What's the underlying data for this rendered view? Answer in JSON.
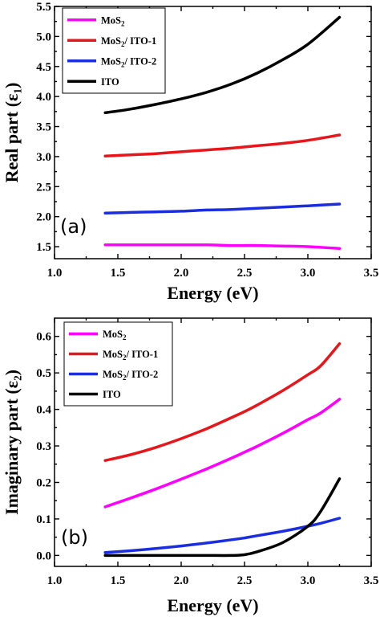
{
  "chart_data": [
    {
      "type": "line",
      "panel_label": "(a)",
      "xlabel": "Energy (eV)",
      "ylabel": "Real  part (ε₁)",
      "xlim": [
        1.0,
        3.5
      ],
      "ylim": [
        1.3,
        5.5
      ],
      "xticks": [
        "1.0",
        "1.5",
        "2.0",
        "2.5",
        "3.0",
        "3.5"
      ],
      "yticks": [
        "1.5",
        "2.0",
        "2.5",
        "3.0",
        "3.5",
        "4.0",
        "4.5",
        "5.0",
        "5.5"
      ],
      "legend_placement": "top-left",
      "x": [
        1.4,
        1.6,
        1.8,
        2.0,
        2.2,
        2.4,
        2.6,
        2.8,
        3.0,
        3.25
      ],
      "series": [
        {
          "name": "MoS2",
          "color": "#ff00ff",
          "values": [
            1.53,
            1.53,
            1.53,
            1.53,
            1.53,
            1.52,
            1.52,
            1.51,
            1.5,
            1.47
          ]
        },
        {
          "name": "MoS2/ ITO-1",
          "color": "#e8161a",
          "values": [
            3.01,
            3.03,
            3.05,
            3.08,
            3.11,
            3.14,
            3.18,
            3.22,
            3.27,
            3.36
          ]
        },
        {
          "name": "MoS2/ ITO-2",
          "color": "#1a2ee0",
          "values": [
            2.06,
            2.07,
            2.08,
            2.09,
            2.11,
            2.12,
            2.14,
            2.16,
            2.18,
            2.21
          ]
        },
        {
          "name": "ITO",
          "color": "#000000",
          "values": [
            3.73,
            3.79,
            3.87,
            3.96,
            4.07,
            4.21,
            4.39,
            4.61,
            4.87,
            5.32
          ]
        }
      ]
    },
    {
      "type": "line",
      "panel_label": "(b)",
      "xlabel": "Energy (eV)",
      "ylabel": "Imaginary part (ε₂)",
      "xlim": [
        1.0,
        3.5
      ],
      "ylim": [
        -0.03,
        0.65
      ],
      "xticks": [
        "1.0",
        "1.5",
        "2.0",
        "2.5",
        "3.0",
        "3.5"
      ],
      "yticks": [
        "0.0",
        "0.1",
        "0.2",
        "0.3",
        "0.4",
        "0.5",
        "0.6"
      ],
      "legend_placement": "top-left",
      "x": [
        1.4,
        1.6,
        1.8,
        2.0,
        2.2,
        2.4,
        2.5,
        2.6,
        2.8,
        3.0,
        3.1,
        3.25
      ],
      "series": [
        {
          "name": "MoS2",
          "color": "#ff00ff",
          "values": [
            0.133,
            0.157,
            0.182,
            0.209,
            0.237,
            0.267,
            0.283,
            0.299,
            0.334,
            0.372,
            0.39,
            0.428
          ]
        },
        {
          "name": "MoS2/ ITO-1",
          "color": "#e8161a",
          "values": [
            0.26,
            0.276,
            0.296,
            0.32,
            0.347,
            0.378,
            0.394,
            0.412,
            0.451,
            0.495,
            0.519,
            0.58
          ]
        },
        {
          "name": "MoS2/ ITO-2",
          "color": "#1a2ee0",
          "values": [
            0.008,
            0.013,
            0.019,
            0.026,
            0.034,
            0.043,
            0.048,
            0.054,
            0.066,
            0.08,
            0.088,
            0.102
          ]
        },
        {
          "name": "ITO",
          "color": "#000000",
          "values": [
            0.0,
            0.0,
            0.0,
            0.0,
            0.0,
            0.0,
            0.002,
            0.01,
            0.035,
            0.08,
            0.12,
            0.21
          ]
        }
      ]
    }
  ],
  "legend_labels": [
    {
      "base": "MoS",
      "sub": "2",
      "rest": ""
    },
    {
      "base": "MoS",
      "sub": "2",
      "rest": "/ ITO-1"
    },
    {
      "base": "MoS",
      "sub": "2",
      "rest": "/ ITO-2"
    },
    {
      "base": "ITO",
      "sub": "",
      "rest": ""
    }
  ]
}
